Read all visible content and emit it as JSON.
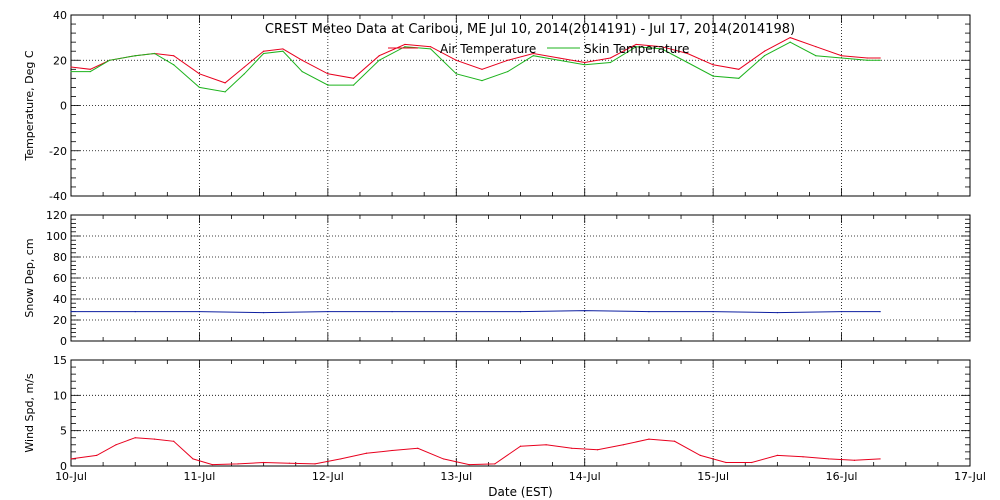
{
  "title": "CREST Meteo Data at Caribou, ME   Jul 10, 2014(2014191) - Jul 17, 2014(2014198)",
  "xlabel": "Date (EST)",
  "colors": {
    "air": "#e8001e",
    "skin": "#1db31d",
    "snow": "#0d1fa0",
    "wind": "#e8001e",
    "axis": "#000000",
    "grid": "#000000"
  },
  "chart_data": [
    {
      "type": "line",
      "panel": "temperature",
      "ylabel": "Temperature, Deg C",
      "ylim": [
        -40,
        40
      ],
      "yticks": [
        -40,
        -20,
        0,
        20,
        40
      ],
      "grid": true,
      "legend_placement": "top-center",
      "x_categories": [
        "10-Jul",
        "11-Jul",
        "12-Jul",
        "13-Jul",
        "14-Jul",
        "15-Jul",
        "16-Jul",
        "17-Jul"
      ],
      "x_unit": "days since 10-Jul 00:00 EST",
      "series": [
        {
          "name": "Air Temperature",
          "color": "#e8001e",
          "x": [
            0,
            0.15,
            0.3,
            0.5,
            0.65,
            0.8,
            1.0,
            1.2,
            1.35,
            1.5,
            1.65,
            1.8,
            2.0,
            2.2,
            2.4,
            2.6,
            2.8,
            3.0,
            3.2,
            3.4,
            3.6,
            3.8,
            4.0,
            4.2,
            4.4,
            4.6,
            4.8,
            5.0,
            5.2,
            5.4,
            5.6,
            5.8,
            6.0,
            6.2,
            6.3
          ],
          "y": [
            17,
            16,
            20,
            22,
            23,
            22,
            14,
            10,
            17,
            24,
            25,
            20,
            14,
            12,
            22,
            27,
            26,
            20,
            16,
            20,
            23,
            21,
            19,
            21,
            27,
            26,
            23,
            18,
            16,
            24,
            30,
            26,
            22,
            21,
            21
          ]
        },
        {
          "name": "Skin Temperature",
          "color": "#1db31d",
          "x": [
            0,
            0.15,
            0.3,
            0.5,
            0.65,
            0.8,
            1.0,
            1.2,
            1.35,
            1.5,
            1.65,
            1.8,
            2.0,
            2.2,
            2.4,
            2.6,
            2.8,
            3.0,
            3.2,
            3.4,
            3.6,
            3.8,
            4.0,
            4.2,
            4.4,
            4.6,
            4.8,
            5.0,
            5.2,
            5.4,
            5.6,
            5.8,
            6.0,
            6.2,
            6.3
          ],
          "y": [
            15,
            15,
            20,
            22,
            23,
            18,
            8,
            6,
            14,
            23,
            24,
            15,
            9,
            9,
            20,
            26,
            25,
            14,
            11,
            15,
            22,
            20,
            18,
            19,
            26,
            25,
            19,
            13,
            12,
            22,
            28,
            22,
            21,
            20,
            20
          ]
        }
      ]
    },
    {
      "type": "line",
      "panel": "snow",
      "ylabel": "Snow Dep, cm",
      "ylim": [
        0,
        120
      ],
      "yticks": [
        0,
        20,
        40,
        60,
        80,
        100,
        120
      ],
      "grid": true,
      "series": [
        {
          "name": "Snow Depth",
          "color": "#0d1fa0",
          "x": [
            0,
            0.5,
            1.0,
            1.5,
            2.0,
            2.5,
            3.0,
            3.5,
            4.0,
            4.5,
            5.0,
            5.5,
            6.0,
            6.3
          ],
          "y": [
            28,
            28,
            28,
            27,
            28,
            28,
            28,
            28,
            29,
            28,
            28,
            27,
            28,
            28
          ]
        }
      ]
    },
    {
      "type": "line",
      "panel": "wind",
      "ylabel": "Wind Spd, m/s",
      "ylim": [
        0,
        15
      ],
      "yticks": [
        0,
        5,
        10,
        15
      ],
      "grid": true,
      "series": [
        {
          "name": "Wind Speed",
          "color": "#e8001e",
          "x": [
            0,
            0.2,
            0.35,
            0.5,
            0.65,
            0.8,
            0.95,
            1.1,
            1.3,
            1.5,
            1.7,
            1.9,
            2.1,
            2.3,
            2.5,
            2.7,
            2.9,
            3.1,
            3.3,
            3.5,
            3.7,
            3.9,
            4.1,
            4.3,
            4.5,
            4.7,
            4.9,
            5.1,
            5.3,
            5.5,
            5.7,
            5.9,
            6.1,
            6.3
          ],
          "y": [
            1,
            1.5,
            3,
            4,
            3.8,
            3.5,
            1,
            0.2,
            0.3,
            0.5,
            0.4,
            0.3,
            1,
            1.8,
            2.2,
            2.5,
            1,
            0.2,
            0.3,
            2.8,
            3,
            2.5,
            2.3,
            3,
            3.8,
            3.5,
            1.5,
            0.5,
            0.5,
            1.5,
            1.3,
            1,
            0.8,
            1
          ]
        }
      ]
    }
  ]
}
